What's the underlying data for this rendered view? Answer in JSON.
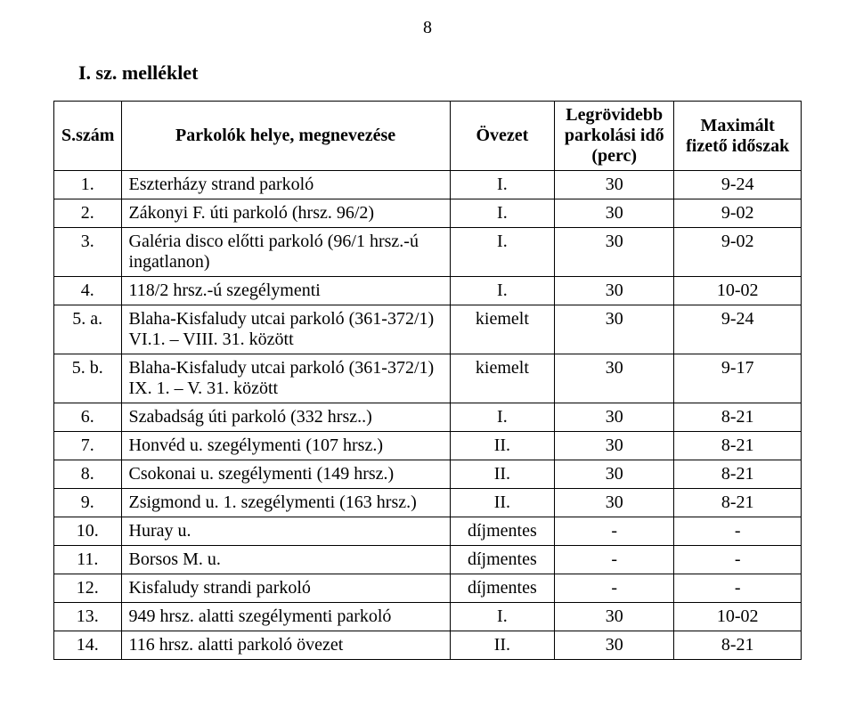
{
  "pageNumber": "8",
  "title": "I. sz. melléklet",
  "headers": {
    "col1": "S.szám",
    "col2": "Parkolók helye, megnevezése",
    "col3": "Övezet",
    "col4": "Legrövidebb parkolási idő (perc)",
    "col5": "Maximált fizető időszak"
  },
  "rows": [
    {
      "n": "1.",
      "name": "Eszterházy strand parkoló",
      "zone": "I.",
      "min": "30",
      "max": "9-24"
    },
    {
      "n": "2.",
      "name": "Zákonyi F. úti parkoló (hrsz. 96/2)",
      "zone": "I.",
      "min": "30",
      "max": "9-02"
    },
    {
      "n": "3.",
      "name": "Galéria disco előtti parkoló (96/1 hrsz.-ú ingatlanon)",
      "zone": "I.",
      "min": "30",
      "max": "9-02"
    },
    {
      "n": "4.",
      "name": "118/2 hrsz.-ú szegélymenti",
      "zone": "I.",
      "min": "30",
      "max": "10-02"
    },
    {
      "n": "5. a.",
      "name": "Blaha-Kisfaludy utcai parkoló (361-372/1) VI.1. – VIII. 31. között",
      "zone": "kiemelt",
      "min": "30",
      "max": "9-24"
    },
    {
      "n": "5. b.",
      "name": "Blaha-Kisfaludy utcai parkoló (361-372/1) IX. 1. – V. 31. között",
      "zone": "kiemelt",
      "min": "30",
      "max": "9-17"
    },
    {
      "n": "6.",
      "name": "Szabadság úti parkoló (332 hrsz..)",
      "zone": "I.",
      "min": "30",
      "max": "8-21"
    },
    {
      "n": "7.",
      "name": "Honvéd u. szegélymenti (107 hrsz.)",
      "zone": "II.",
      "min": "30",
      "max": "8-21"
    },
    {
      "n": "8.",
      "name": "Csokonai u. szegélymenti (149 hrsz.)",
      "zone": "II.",
      "min": "30",
      "max": "8-21"
    },
    {
      "n": "9.",
      "name": "Zsigmond u. 1. szegélymenti (163 hrsz.)",
      "zone": "II.",
      "min": "30",
      "max": "8-21"
    },
    {
      "n": "10.",
      "name": "Huray u.",
      "zone": "díjmentes",
      "min": "-",
      "max": "-"
    },
    {
      "n": "11.",
      "name": "Borsos M. u.",
      "zone": "díjmentes",
      "min": "-",
      "max": "-"
    },
    {
      "n": "12.",
      "name": "Kisfaludy strandi parkoló",
      "zone": "díjmentes",
      "min": "-",
      "max": "-"
    },
    {
      "n": "13.",
      "name": "949 hrsz. alatti szegélymenti parkoló",
      "zone": "I.",
      "min": "30",
      "max": "10-02"
    },
    {
      "n": "14.",
      "name": "116 hrsz. alatti parkoló övezet",
      "zone": "II.",
      "min": "30",
      "max": "8-21"
    }
  ]
}
